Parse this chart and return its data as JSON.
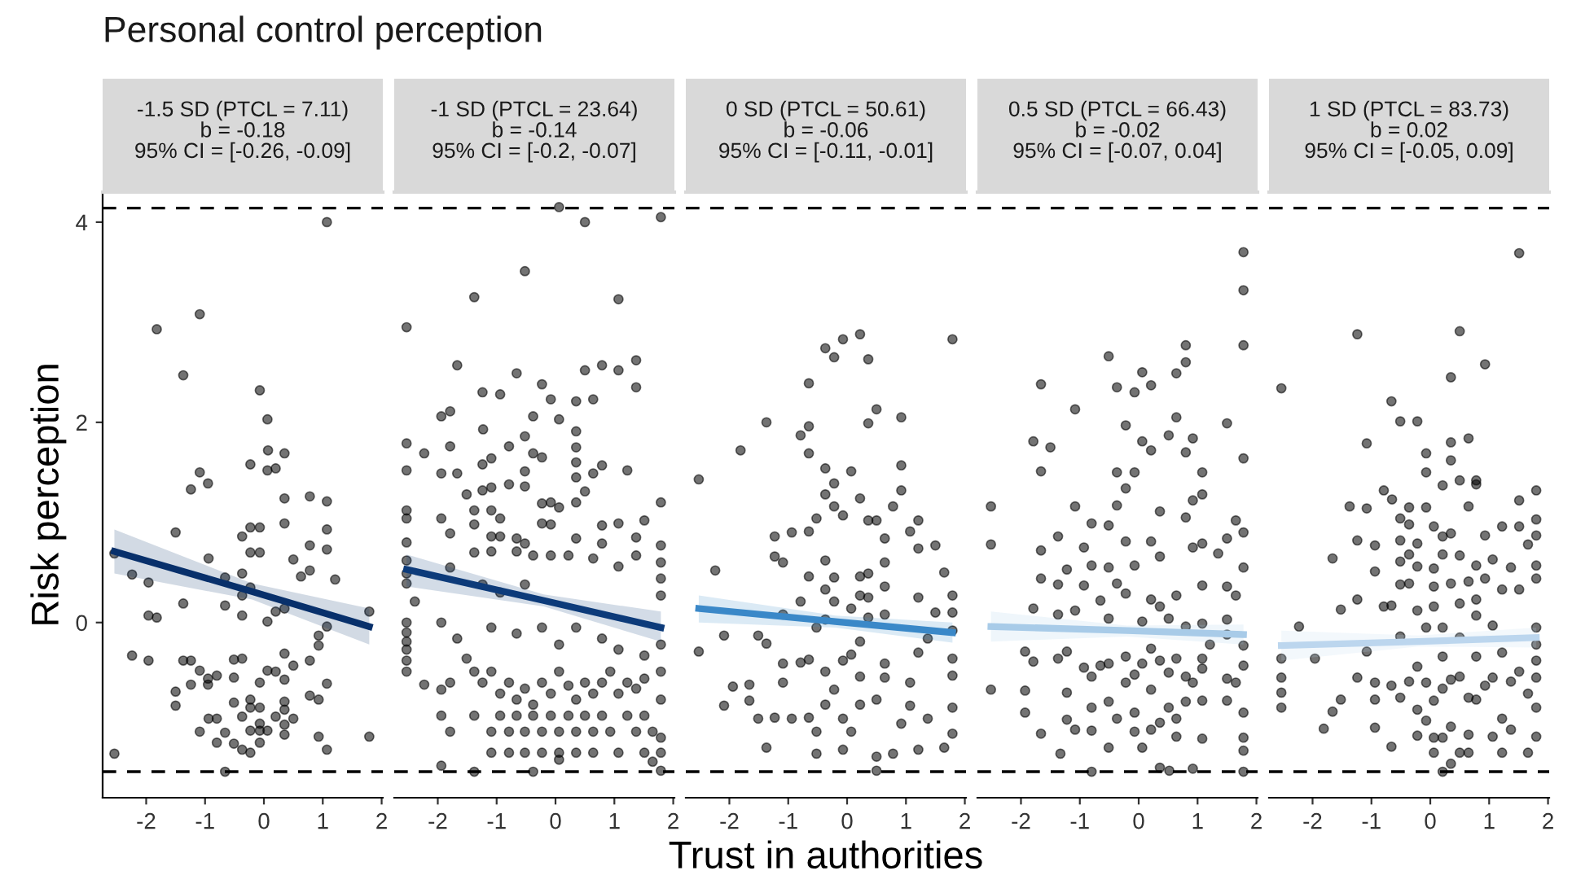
{
  "chart_data": [
    {
      "type": "scatter",
      "title": "Personal control perception",
      "subtitle": "-1.5 SD (PTCL = 7.11)\nb = -0.18\n95% CI = [-0.26, -0.09]",
      "ylabel": "Risk perception",
      "xlim": [
        -2.74,
        2.02
      ],
      "xticks": [
        -2,
        -1,
        0,
        1,
        2
      ],
      "ylim": [
        -1.75,
        4.3
      ],
      "yticks": [
        0,
        2,
        4
      ],
      "grid": false,
      "legend": false,
      "ref_lines": [
        {
          "axis": "y",
          "value": 4.14,
          "line_style": "dashed",
          "color": "#000000"
        },
        {
          "axis": "y",
          "value": -1.49,
          "line_style": "dashed",
          "color": "#000000"
        }
      ],
      "series": [
        {
          "type": "scatter",
          "marker": "circle",
          "color": "#000000",
          "x": [
            -2.54,
            -1.82,
            -1.09,
            1.07,
            -1.37,
            -0.07,
            0.06,
            0.07,
            0.35,
            -0.23,
            0.06,
            0.2,
            -1.09,
            -0.95,
            -1.24,
            0.35,
            0.78,
            1.07,
            0.35,
            -0.23,
            -0.07,
            1.07,
            -1.5,
            -0.37,
            0.78,
            1.07,
            -0.23,
            -0.07,
            -2.54,
            -0.94,
            0.5,
            0.78,
            0.63,
            1.21,
            -0.66,
            -0.37,
            -2.24,
            -1.96,
            -0.23,
            -0.37,
            -1.37,
            -0.66,
            0.35,
            0.2,
            1.79,
            -1.96,
            -1.82,
            -0.37,
            0.06,
            1.07,
            0.93,
            0.93,
            -2.24,
            -1.96,
            -1.37,
            -1.24,
            -0.51,
            -0.37,
            0.35,
            0.78,
            0.5,
            -1.09,
            0.06,
            0.2,
            -0.8,
            -0.95,
            -0.95,
            -0.51,
            0.35,
            -1.24,
            -0.07,
            1.07,
            -1.5,
            0.78,
            0.93,
            -0.51,
            -0.23,
            -0.23,
            -1.5,
            0.35,
            0.35,
            -0.07,
            -0.94,
            -0.8,
            -0.37,
            0.2,
            0.5,
            -0.07,
            0.35,
            -1.09,
            -0.66,
            -0.23,
            -0.07,
            0.06,
            0.35,
            0.93,
            1.79,
            -0.8,
            -0.51,
            -0.37,
            -0.23,
            -0.07,
            1.07,
            -0.66
          ],
          "values": [
            -1.31,
            2.93,
            3.08,
            4.0,
            2.47,
            2.32,
            2.03,
            1.72,
            1.69,
            1.58,
            1.52,
            1.54,
            1.5,
            1.39,
            1.33,
            1.24,
            1.26,
            1.21,
            0.99,
            0.95,
            0.95,
            0.93,
            0.9,
            0.86,
            0.77,
            0.73,
            0.7,
            0.7,
            0.69,
            0.64,
            0.63,
            0.52,
            0.46,
            0.43,
            0.45,
            0.49,
            0.48,
            0.4,
            0.35,
            0.27,
            0.19,
            0.17,
            0.14,
            0.11,
            0.11,
            0.07,
            0.05,
            0.07,
            0.01,
            -0.04,
            -0.13,
            -0.23,
            -0.33,
            -0.38,
            -0.38,
            -0.38,
            -0.37,
            -0.36,
            -0.31,
            -0.38,
            -0.43,
            -0.48,
            -0.48,
            -0.49,
            -0.53,
            -0.56,
            -0.62,
            -0.55,
            -0.57,
            -0.62,
            -0.6,
            -0.61,
            -0.69,
            -0.73,
            -0.77,
            -0.8,
            -0.77,
            -0.85,
            -0.83,
            -0.79,
            -0.87,
            -0.85,
            -0.96,
            -0.96,
            -0.94,
            -0.94,
            -0.96,
            -1.01,
            -1.02,
            -1.09,
            -1.1,
            -1.08,
            -1.08,
            -1.08,
            -1.12,
            -1.14,
            -1.14,
            -1.2,
            -1.21,
            -1.27,
            -1.3,
            -1.2,
            -1.27,
            -1.49
          ]
        },
        {
          "type": "line",
          "color": "#08306b",
          "x": [
            -2.54,
            -0.2,
            1.79
          ],
          "values": [
            0.71,
            0.31,
            -0.04
          ],
          "lower": [
            0.49,
            0.23,
            -0.22
          ],
          "upper": [
            0.93,
            0.39,
            0.14
          ]
        }
      ]
    },
    {
      "type": "scatter",
      "subtitle": "-1 SD (PTCL = 23.64)\nb = -0.14\n95% CI = [-0.2, -0.07]",
      "xlim": [
        -2.74,
        2.02
      ],
      "xticks": [
        -2,
        -1,
        0,
        1,
        2
      ],
      "ylim": [
        -1.75,
        4.3
      ],
      "yticks": [
        0,
        2,
        4
      ],
      "tick_labels": "x",
      "grid": false,
      "legend": false,
      "ref_lines": [
        {
          "axis": "y",
          "value": 4.14,
          "line_style": "dashed",
          "color": "#000000"
        },
        {
          "axis": "y",
          "value": -1.49,
          "line_style": "dashed",
          "color": "#000000"
        }
      ],
      "series": [
        {
          "type": "scatter",
          "marker": "circle",
          "color": "#000000",
          "x": [
            0.06,
            0.5,
            1.79,
            -0.52,
            -1.38,
            1.07,
            -2.53,
            -1.67,
            -0.66,
            -0.23,
            0.5,
            0.79,
            1.07,
            1.37,
            1.37,
            -1.24,
            -0.94,
            -0.08,
            0.35,
            0.64,
            -1.94,
            -1.79,
            -0.38,
            0.06,
            -1.23,
            -0.52,
            0.35,
            0.35,
            0.35,
            0.35,
            -2.53,
            -2.23,
            -1.79,
            -0.79,
            -1.24,
            -1.09,
            -0.38,
            -0.23,
            0.79,
            1.22,
            -2.53,
            -1.94,
            -1.67,
            -0.52,
            0.64,
            -1.51,
            -1.24,
            -1.09,
            -0.79,
            -0.52,
            -0.23,
            -0.08,
            0.06,
            0.35,
            0.5,
            -2.53,
            -2.53,
            -1.94,
            -1.38,
            -0.94,
            -1.09,
            -0.23,
            -0.08,
            0.79,
            1.07,
            1.51,
            1.79,
            -2.53,
            -1.79,
            -1.38,
            -1.09,
            -0.94,
            -0.66,
            -0.52,
            0.35,
            0.79,
            1.37,
            -2.53,
            -2.53,
            -2.53,
            -1.79,
            -1.38,
            -1.09,
            -0.66,
            -0.38,
            -0.08,
            0.22,
            0.64,
            1.07,
            1.37,
            1.79,
            1.79,
            1.79,
            1.79,
            -2.39,
            -1.24,
            -0.94,
            -0.52,
            -2.53,
            -2.53,
            -2.53,
            -2.53,
            -2.53,
            -2.53,
            -2.23,
            -1.94,
            -1.79,
            -1.51,
            -1.38,
            -1.24,
            -1.09,
            -0.94,
            -0.79,
            -0.66,
            -0.52,
            -0.38,
            -0.23,
            -0.08,
            0.06,
            0.22,
            0.35,
            0.5,
            0.64,
            0.79,
            0.93,
            1.07,
            1.22,
            1.37,
            1.51,
            1.79,
            -1.94,
            -1.38,
            -0.94,
            -0.66,
            -0.38,
            -0.08,
            0.22,
            0.5,
            0.79,
            1.22,
            1.51,
            -1.79,
            -1.09,
            -0.79,
            -0.52,
            -0.23,
            0.06,
            0.35,
            0.64,
            0.93,
            1.37,
            1.65,
            -1.09,
            -0.79,
            -0.52,
            -0.23,
            0.06,
            0.35,
            0.64,
            1.07,
            1.51,
            1.79,
            -1.94,
            -1.38,
            -0.38,
            0.06,
            1.65,
            1.79,
            -1.94,
            -1.67,
            -1.09,
            -0.66,
            -0.23,
            0.06,
            0.35,
            0.79,
            1.07,
            1.51,
            1.79,
            1.79,
            1.79
          ],
          "values": [
            4.15,
            4.0,
            4.05,
            3.51,
            3.25,
            3.23,
            2.95,
            2.57,
            2.49,
            2.38,
            2.52,
            2.57,
            2.52,
            2.62,
            2.35,
            2.3,
            2.28,
            2.23,
            2.21,
            2.23,
            2.06,
            2.11,
            2.06,
            2.03,
            1.93,
            1.86,
            1.91,
            1.75,
            1.6,
            1.45,
            1.79,
            1.69,
            1.76,
            1.76,
            1.58,
            1.64,
            1.69,
            1.65,
            1.57,
            1.52,
            1.52,
            1.49,
            1.49,
            1.51,
            1.49,
            1.28,
            1.32,
            1.35,
            1.38,
            1.36,
            1.19,
            1.2,
            1.15,
            1.2,
            1.31,
            1.12,
            1.04,
            1.04,
            1.12,
            1.04,
            1.12,
            0.99,
            0.98,
            0.97,
            0.99,
            1.02,
            1.2,
            0.8,
            0.89,
            0.98,
            0.86,
            0.86,
            0.84,
            0.79,
            0.84,
            0.79,
            0.85,
            0.62,
            0.49,
            0.39,
            0.55,
            0.7,
            0.71,
            0.71,
            0.67,
            0.67,
            0.67,
            0.64,
            0.56,
            0.67,
            0.77,
            0.6,
            0.44,
            0.27,
            0.21,
            0.38,
            0.3,
            0.38,
            0.0,
            -0.1,
            -0.19,
            -0.27,
            -0.38,
            -0.49,
            -0.62,
            -0.67,
            -0.6,
            -0.36,
            -0.49,
            -0.6,
            -0.49,
            -0.71,
            -0.6,
            -0.77,
            -0.66,
            -0.82,
            -0.6,
            -0.71,
            -0.49,
            -0.63,
            -0.77,
            -0.6,
            -0.71,
            -0.6,
            -0.49,
            -0.71,
            -0.6,
            -0.66,
            -0.56,
            -0.49,
            -0.93,
            -0.93,
            -0.93,
            -0.93,
            -0.93,
            -0.93,
            -0.93,
            -0.93,
            -0.93,
            -0.93,
            -0.93,
            -1.09,
            -1.09,
            -1.09,
            -1.09,
            -1.09,
            -1.09,
            -1.09,
            -1.09,
            -1.09,
            -1.09,
            -1.09,
            -1.3,
            -1.3,
            -1.3,
            -1.3,
            -1.3,
            -1.3,
            -1.3,
            -1.3,
            -1.3,
            -1.3,
            -1.43,
            -1.49,
            -1.49,
            -1.37,
            -1.39,
            -1.48,
            0.0,
            -0.16,
            -0.05,
            -0.11,
            -0.05,
            -0.22,
            -0.05,
            -0.16,
            -0.27,
            -0.33,
            -0.22,
            -0.77,
            -1.15
          ]
        },
        {
          "type": "line",
          "color": "#0d3b7a",
          "x": [
            -2.53,
            -0.2,
            1.79
          ],
          "values": [
            0.53,
            0.22,
            -0.05
          ],
          "lower": [
            0.36,
            0.16,
            -0.19
          ],
          "upper": [
            0.68,
            0.28,
            0.11
          ]
        }
      ]
    },
    {
      "type": "scatter",
      "subtitle": "0 SD (PTCL = 50.61)\nb = -0.06\n95% CI = [-0.11, -0.01]",
      "xlabel": "Trust in authorities",
      "xlim": [
        -2.74,
        2.02
      ],
      "xticks": [
        -2,
        -1,
        0,
        1,
        2
      ],
      "ylim": [
        -1.75,
        4.3
      ],
      "yticks": [
        0,
        2,
        4
      ],
      "tick_labels": "x",
      "grid": false,
      "legend": false,
      "ref_lines": [
        {
          "axis": "y",
          "value": 4.14,
          "line_style": "dashed",
          "color": "#000000"
        },
        {
          "axis": "y",
          "value": -1.49,
          "line_style": "dashed",
          "color": "#000000"
        }
      ],
      "series": [
        {
          "type": "scatter",
          "marker": "circle",
          "color": "#000000",
          "x": [
            -2.52,
            -2.24,
            -2.52,
            -2.09,
            -1.81,
            -1.37,
            -1.94,
            -2.09,
            -1.66,
            -1.66,
            -1.51,
            -1.51,
            -1.37,
            -1.37,
            -1.23,
            -1.23,
            -1.09,
            -0.94,
            -0.79,
            -0.65,
            -0.65,
            -0.65,
            -0.65,
            -0.52,
            -0.37,
            -0.22,
            -0.07,
            0.22,
            0.36,
            0.36,
            0.5,
            0.92,
            0.92,
            0.92,
            0.78,
            0.07,
            0.22,
            -0.37,
            -0.37,
            -0.22,
            -0.22,
            -0.07,
            0.36,
            0.5,
            1.21,
            1.07,
            0.64,
            1.21,
            1.5,
            1.65,
            1.79,
            1.79,
            1.79,
            1.79,
            1.79,
            1.79,
            1.79,
            1.79,
            1.65,
            1.5,
            1.37,
            1.21,
            1.21,
            1.07,
            1.07,
            1.37,
            1.21,
            0.92,
            0.78,
            0.64,
            0.64,
            0.64,
            0.64,
            0.64,
            0.5,
            0.5,
            0.5,
            0.36,
            0.36,
            0.36,
            0.22,
            0.22,
            0.22,
            0.22,
            0.22,
            0.07,
            0.07,
            0.07,
            -0.07,
            -0.07,
            -0.07,
            -0.22,
            -0.22,
            -0.22,
            -0.37,
            -0.37,
            -0.37,
            -0.37,
            -0.37,
            -0.52,
            -0.52,
            -0.65,
            -0.65,
            -0.65,
            -0.79,
            -0.94,
            -1.09,
            -1.09,
            -1.09,
            -1.23,
            -0.52,
            -0.79
          ],
          "values": [
            1.43,
            0.52,
            -0.29,
            -0.13,
            1.72,
            2.0,
            -0.64,
            -0.83,
            -0.62,
            -0.78,
            -0.13,
            -0.96,
            -1.25,
            -0.21,
            0.86,
            0.66,
            0.6,
            0.9,
            1.87,
            1.96,
            2.39,
            1.69,
            0.91,
            1.04,
            2.74,
            2.65,
            2.83,
            2.88,
            2.63,
            1.99,
            2.13,
            2.05,
            1.57,
            1.32,
            1.16,
            1.51,
            1.24,
            1.54,
            1.28,
            1.39,
            1.16,
            1.07,
            1.02,
            1.02,
            1.02,
            0.91,
            0.84,
            0.74,
            0.77,
            0.5,
            2.83,
            0.27,
            0.1,
            -0.08,
            -0.36,
            -0.53,
            -0.85,
            -1.11,
            -1.25,
            0.1,
            -0.16,
            0.25,
            -0.3,
            -0.6,
            -0.83,
            -0.96,
            -1.27,
            -1.01,
            -1.31,
            0.6,
            0.36,
            0.08,
            -0.41,
            -0.55,
            -0.77,
            -1.34,
            -1.48,
            0.49,
            0.25,
            0.05,
            0.46,
            0.27,
            -0.19,
            -0.54,
            -0.82,
            0.14,
            -0.32,
            -1.09,
            -0.38,
            -0.96,
            -1.27,
            0.45,
            0.21,
            -0.67,
            0.62,
            0.33,
            0.03,
            -0.49,
            -0.82,
            -0.05,
            -1.09,
            0.46,
            -0.37,
            -0.95,
            -0.4,
            -0.96,
            0.08,
            -0.41,
            -0.6,
            -0.95,
            -1.31,
            0.21
          ]
        },
        {
          "type": "line",
          "color": "#3a88c8",
          "x": [
            -2.52,
            -0.2,
            1.79
          ],
          "values": [
            0.14,
            0.01,
            -0.1
          ],
          "lower": [
            0.0,
            -0.05,
            -0.2
          ],
          "upper": [
            0.27,
            0.07,
            0.0
          ]
        }
      ]
    },
    {
      "type": "scatter",
      "subtitle": "0.5 SD (PTCL = 66.43)\nb = -0.02\n95% CI = [-0.07, 0.04]",
      "xlim": [
        -2.74,
        2.02
      ],
      "xticks": [
        -2,
        -1,
        0,
        1,
        2
      ],
      "ylim": [
        -1.75,
        4.3
      ],
      "yticks": [
        0,
        2,
        4
      ],
      "tick_labels": "x",
      "grid": false,
      "legend": false,
      "ref_lines": [
        {
          "axis": "y",
          "value": 4.14,
          "line_style": "dashed",
          "color": "#000000"
        },
        {
          "axis": "y",
          "value": -1.49,
          "line_style": "dashed",
          "color": "#000000"
        }
      ],
      "series": [
        {
          "type": "scatter",
          "marker": "circle",
          "color": "#000000",
          "x": [
            1.78,
            1.78,
            1.78,
            0.8,
            0.8,
            -0.51,
            0.06,
            0.64,
            -1.66,
            -0.37,
            -0.07,
            0.21,
            -1.08,
            -0.22,
            0.64,
            1.5,
            -1.79,
            -1.5,
            -1.66,
            0.06,
            0.21,
            0.51,
            0.8,
            0.92,
            1.78,
            -0.37,
            -0.07,
            1.08,
            -0.22,
            0.92,
            1.08,
            -2.51,
            -1.08,
            -0.37,
            0.36,
            0.8,
            1.65,
            -2.51,
            -0.8,
            -0.51,
            -1.37,
            -0.93,
            -0.22,
            0.21,
            0.92,
            1.08,
            1.5,
            1.78,
            -1.66,
            -1.22,
            -0.8,
            -0.51,
            -0.07,
            0.36,
            1.35,
            1.78,
            -1.66,
            -1.37,
            -0.93,
            -0.37,
            -0.22,
            0.21,
            0.36,
            0.64,
            1.08,
            1.5,
            1.65,
            -1.79,
            -1.37,
            -1.08,
            -0.65,
            -0.51,
            0.06,
            0.51,
            0.8,
            1.08,
            1.5,
            1.5,
            1.21,
            1.78,
            -1.93,
            -1.79,
            -1.37,
            -1.22,
            -0.93,
            -0.65,
            -0.51,
            -0.22,
            -0.07,
            0.06,
            0.21,
            0.36,
            0.51,
            0.64,
            0.8,
            1.08,
            1.08,
            1.5,
            1.65,
            1.78,
            -2.51,
            -1.93,
            -1.93,
            -1.66,
            -1.22,
            -1.22,
            -1.08,
            -0.8,
            -0.8,
            -0.8,
            -0.51,
            -0.51,
            -0.37,
            -0.22,
            -0.07,
            -0.07,
            0.06,
            0.21,
            0.21,
            0.36,
            0.51,
            0.64,
            0.64,
            0.8,
            0.92,
            1.08,
            1.08,
            1.5,
            1.78,
            1.78,
            1.78,
            -1.33,
            -0.8,
            0.36,
            0.92,
            1.78,
            0.52
          ],
          "values": [
            3.7,
            3.32,
            2.77,
            2.77,
            2.6,
            2.66,
            2.5,
            2.49,
            2.38,
            2.35,
            2.3,
            2.37,
            2.13,
            1.97,
            2.05,
            1.99,
            1.81,
            1.75,
            1.51,
            1.81,
            1.72,
            1.87,
            1.7,
            1.84,
            1.64,
            1.5,
            1.5,
            1.5,
            1.34,
            1.22,
            1.28,
            1.16,
            1.16,
            1.17,
            1.11,
            1.05,
            1.02,
            0.78,
            0.99,
            0.97,
            0.86,
            0.75,
            0.81,
            0.81,
            0.75,
            0.79,
            0.84,
            0.9,
            0.72,
            0.53,
            0.57,
            0.55,
            0.57,
            0.66,
            0.69,
            0.55,
            0.44,
            0.38,
            0.37,
            0.39,
            0.29,
            0.23,
            0.16,
            0.27,
            0.37,
            0.36,
            0.27,
            0.14,
            0.08,
            0.12,
            0.22,
            0.04,
            0.01,
            0.04,
            -0.04,
            -0.01,
            0.03,
            -0.12,
            -0.22,
            -0.23,
            -0.29,
            -0.39,
            -0.36,
            -0.29,
            -0.45,
            -0.43,
            -0.41,
            -0.34,
            -0.52,
            -0.41,
            -0.26,
            -0.38,
            -0.5,
            -0.36,
            -0.54,
            -0.36,
            -0.46,
            -0.56,
            -0.6,
            -0.43,
            -0.67,
            -0.68,
            -0.9,
            -1.11,
            -0.7,
            -0.97,
            -1.07,
            -0.54,
            -0.85,
            -1.08,
            -0.79,
            -1.25,
            -0.96,
            -0.6,
            -0.9,
            -1.09,
            -1.25,
            -0.67,
            -1.07,
            -1.0,
            -0.85,
            -0.96,
            -1.14,
            -0.79,
            -0.6,
            -0.78,
            -1.16,
            -0.78,
            -0.9,
            -1.15,
            -1.28,
            -1.31,
            -1.49,
            -1.45,
            -1.46,
            -1.49,
            -1.48
          ]
        },
        {
          "type": "line",
          "color": "#a8cbe8",
          "x": [
            -2.51,
            -0.2,
            1.78
          ],
          "values": [
            -0.04,
            -0.08,
            -0.12
          ],
          "lower": [
            -0.19,
            -0.14,
            -0.22
          ],
          "upper": [
            0.11,
            -0.03,
            -0.02
          ]
        }
      ]
    },
    {
      "type": "scatter",
      "subtitle": "1 SD (PTCL = 83.73)\nb = 0.02\n95% CI = [-0.05, 0.09]",
      "xlim": [
        -2.74,
        2.02
      ],
      "xticks": [
        -2,
        -1,
        0,
        1,
        2
      ],
      "ylim": [
        -1.75,
        4.3
      ],
      "yticks": [
        0,
        2,
        4
      ],
      "tick_labels": "x",
      "grid": false,
      "legend": false,
      "ref_lines": [
        {
          "axis": "y",
          "value": 4.14,
          "line_style": "dashed",
          "color": "#000000"
        },
        {
          "axis": "y",
          "value": -1.49,
          "line_style": "dashed",
          "color": "#000000"
        }
      ],
      "series": [
        {
          "type": "scatter",
          "marker": "circle",
          "color": "#000000",
          "x": [
            1.51,
            -1.24,
            0.5,
            0.93,
            0.35,
            -2.53,
            -0.66,
            -0.51,
            -0.22,
            -1.08,
            0.35,
            0.65,
            -0.07,
            0.35,
            -0.07,
            0.21,
            0.5,
            0.78,
            0.78,
            -0.79,
            -0.65,
            -1.37,
            -1.08,
            -0.36,
            -0.07,
            0.65,
            1.8,
            1.51,
            -0.51,
            -0.36,
            0.06,
            1.22,
            1.51,
            1.8,
            -1.24,
            -0.94,
            -0.51,
            -0.22,
            0.21,
            0.35,
            0.93,
            1.8,
            -1.66,
            -0.94,
            -0.51,
            -0.36,
            -0.22,
            0.06,
            0.21,
            0.5,
            0.78,
            1.06,
            1.37,
            1.66,
            1.8,
            1.8,
            -0.51,
            -0.36,
            0.06,
            0.35,
            0.65,
            0.93,
            1.22,
            1.51,
            -1.24,
            -0.79,
            -0.66,
            -0.22,
            0.06,
            0.5,
            0.78,
            -1.52,
            -2.23,
            -0.07,
            0.21,
            0.78,
            1.06,
            1.8,
            -2.53,
            -1.96,
            -1.08,
            -0.51,
            -0.22,
            0.21,
            0.5,
            0.78,
            1.22,
            1.8,
            1.8,
            1.8,
            -2.53,
            -2.53,
            -2.53,
            -1.66,
            -1.52,
            -1.24,
            -0.94,
            -0.94,
            -0.66,
            -0.51,
            -0.36,
            -0.22,
            -0.07,
            0.06,
            0.21,
            0.35,
            0.5,
            0.65,
            0.78,
            0.93,
            1.06,
            1.37,
            1.51,
            1.66,
            1.8,
            -1.81,
            -0.94,
            -0.66,
            -0.22,
            -0.07,
            0.06,
            0.21,
            0.35,
            0.65,
            1.06,
            1.22,
            1.37,
            1.8,
            0.06,
            0.5,
            0.65,
            1.22,
            1.66,
            0.35,
            0.21
          ],
          "values": [
            3.69,
            2.88,
            2.91,
            2.58,
            2.45,
            2.34,
            2.21,
            2.01,
            2.01,
            1.79,
            1.8,
            1.84,
            1.69,
            1.62,
            1.5,
            1.37,
            1.42,
            1.38,
            1.42,
            1.32,
            1.23,
            1.16,
            1.14,
            1.15,
            1.15,
            1.16,
            1.32,
            1.22,
            1.04,
            0.98,
            0.96,
            0.96,
            0.96,
            1.03,
            0.82,
            0.77,
            0.82,
            0.79,
            0.86,
            0.89,
            0.87,
            0.87,
            0.64,
            0.51,
            0.61,
            0.68,
            0.56,
            0.54,
            0.68,
            0.67,
            0.57,
            0.63,
            0.55,
            0.78,
            0.57,
            0.44,
            0.38,
            0.39,
            0.36,
            0.39,
            0.41,
            0.44,
            0.33,
            0.33,
            0.23,
            0.16,
            0.17,
            0.12,
            0.16,
            0.19,
            0.23,
            0.13,
            -0.04,
            -0.05,
            -0.05,
            0.07,
            -0.03,
            -0.05,
            -0.36,
            -0.36,
            -0.29,
            -0.14,
            -0.44,
            -0.34,
            -0.15,
            -0.34,
            -0.3,
            -0.22,
            -0.38,
            -0.55,
            -0.55,
            -0.7,
            -0.85,
            -0.89,
            -0.77,
            -0.55,
            -0.6,
            -0.77,
            -0.63,
            -0.75,
            -0.59,
            -0.87,
            -0.6,
            -0.78,
            -0.66,
            -0.57,
            -0.54,
            -0.75,
            -0.77,
            -0.63,
            -0.55,
            -0.59,
            -0.49,
            -0.71,
            -0.85,
            -1.06,
            -1.05,
            -1.24,
            -1.13,
            -0.98,
            -1.15,
            -1.15,
            -1.04,
            -1.12,
            -1.14,
            -0.96,
            -1.07,
            -1.14,
            -1.3,
            -1.3,
            -1.3,
            -1.3,
            -1.3,
            -1.41,
            -1.49
          ]
        },
        {
          "type": "line",
          "color": "#bcd6ee",
          "x": [
            -2.53,
            -0.2,
            1.8
          ],
          "values": [
            -0.23,
            -0.19,
            -0.15
          ],
          "lower": [
            -0.38,
            -0.24,
            -0.25
          ],
          "upper": [
            -0.08,
            -0.13,
            -0.05
          ]
        }
      ]
    }
  ]
}
